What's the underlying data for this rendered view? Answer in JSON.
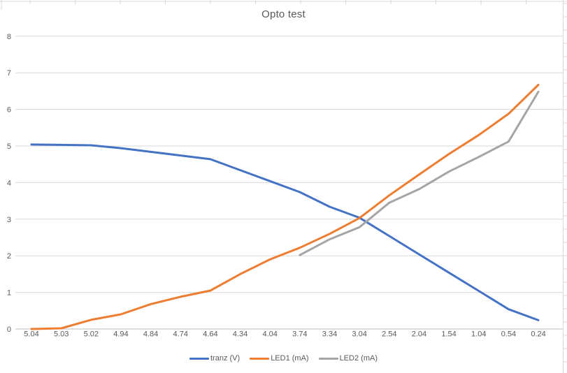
{
  "chart_data": {
    "type": "line",
    "title": "Opto test",
    "categories": [
      "5.04",
      "5.03",
      "5.02",
      "4.94",
      "4.84",
      "4.74",
      "4.64",
      "4.34",
      "4.04",
      "3.74",
      "3.34",
      "3.04",
      "2.54",
      "2.04",
      "1.54",
      "1.04",
      "0.54",
      "0.24"
    ],
    "y_ticks": [
      0,
      1,
      2,
      3,
      4,
      5,
      6,
      7,
      8
    ],
    "ylim": [
      0,
      8
    ],
    "grid": true,
    "legend_position": "bottom",
    "series": [
      {
        "name": "tranz (V)",
        "color": "#4472C4",
        "values": [
          5.04,
          5.03,
          5.02,
          4.94,
          4.84,
          4.74,
          4.64,
          4.34,
          4.04,
          3.74,
          3.34,
          3.04,
          2.54,
          2.04,
          1.54,
          1.04,
          0.54,
          0.24
        ]
      },
      {
        "name": "LED1 (mA)",
        "color": "#ED7D31",
        "values": [
          0,
          0.02,
          0.25,
          0.4,
          0.68,
          0.88,
          1.05,
          1.5,
          1.9,
          2.22,
          2.6,
          3.03,
          3.65,
          4.22,
          4.78,
          5.3,
          5.88,
          6.67
        ]
      },
      {
        "name": "LED2 (mA)",
        "color": "#A5A5A5",
        "values": [
          null,
          null,
          null,
          null,
          null,
          null,
          null,
          null,
          null,
          2.02,
          2.45,
          2.78,
          3.45,
          3.82,
          4.3,
          4.7,
          5.12,
          6.48
        ]
      }
    ],
    "colors": {
      "grid": "#D9D9D9",
      "axis": "#BFBFBF",
      "text": "#595959",
      "sheet_line": "#D9D9D9",
      "background": "#FFFFFF"
    }
  }
}
